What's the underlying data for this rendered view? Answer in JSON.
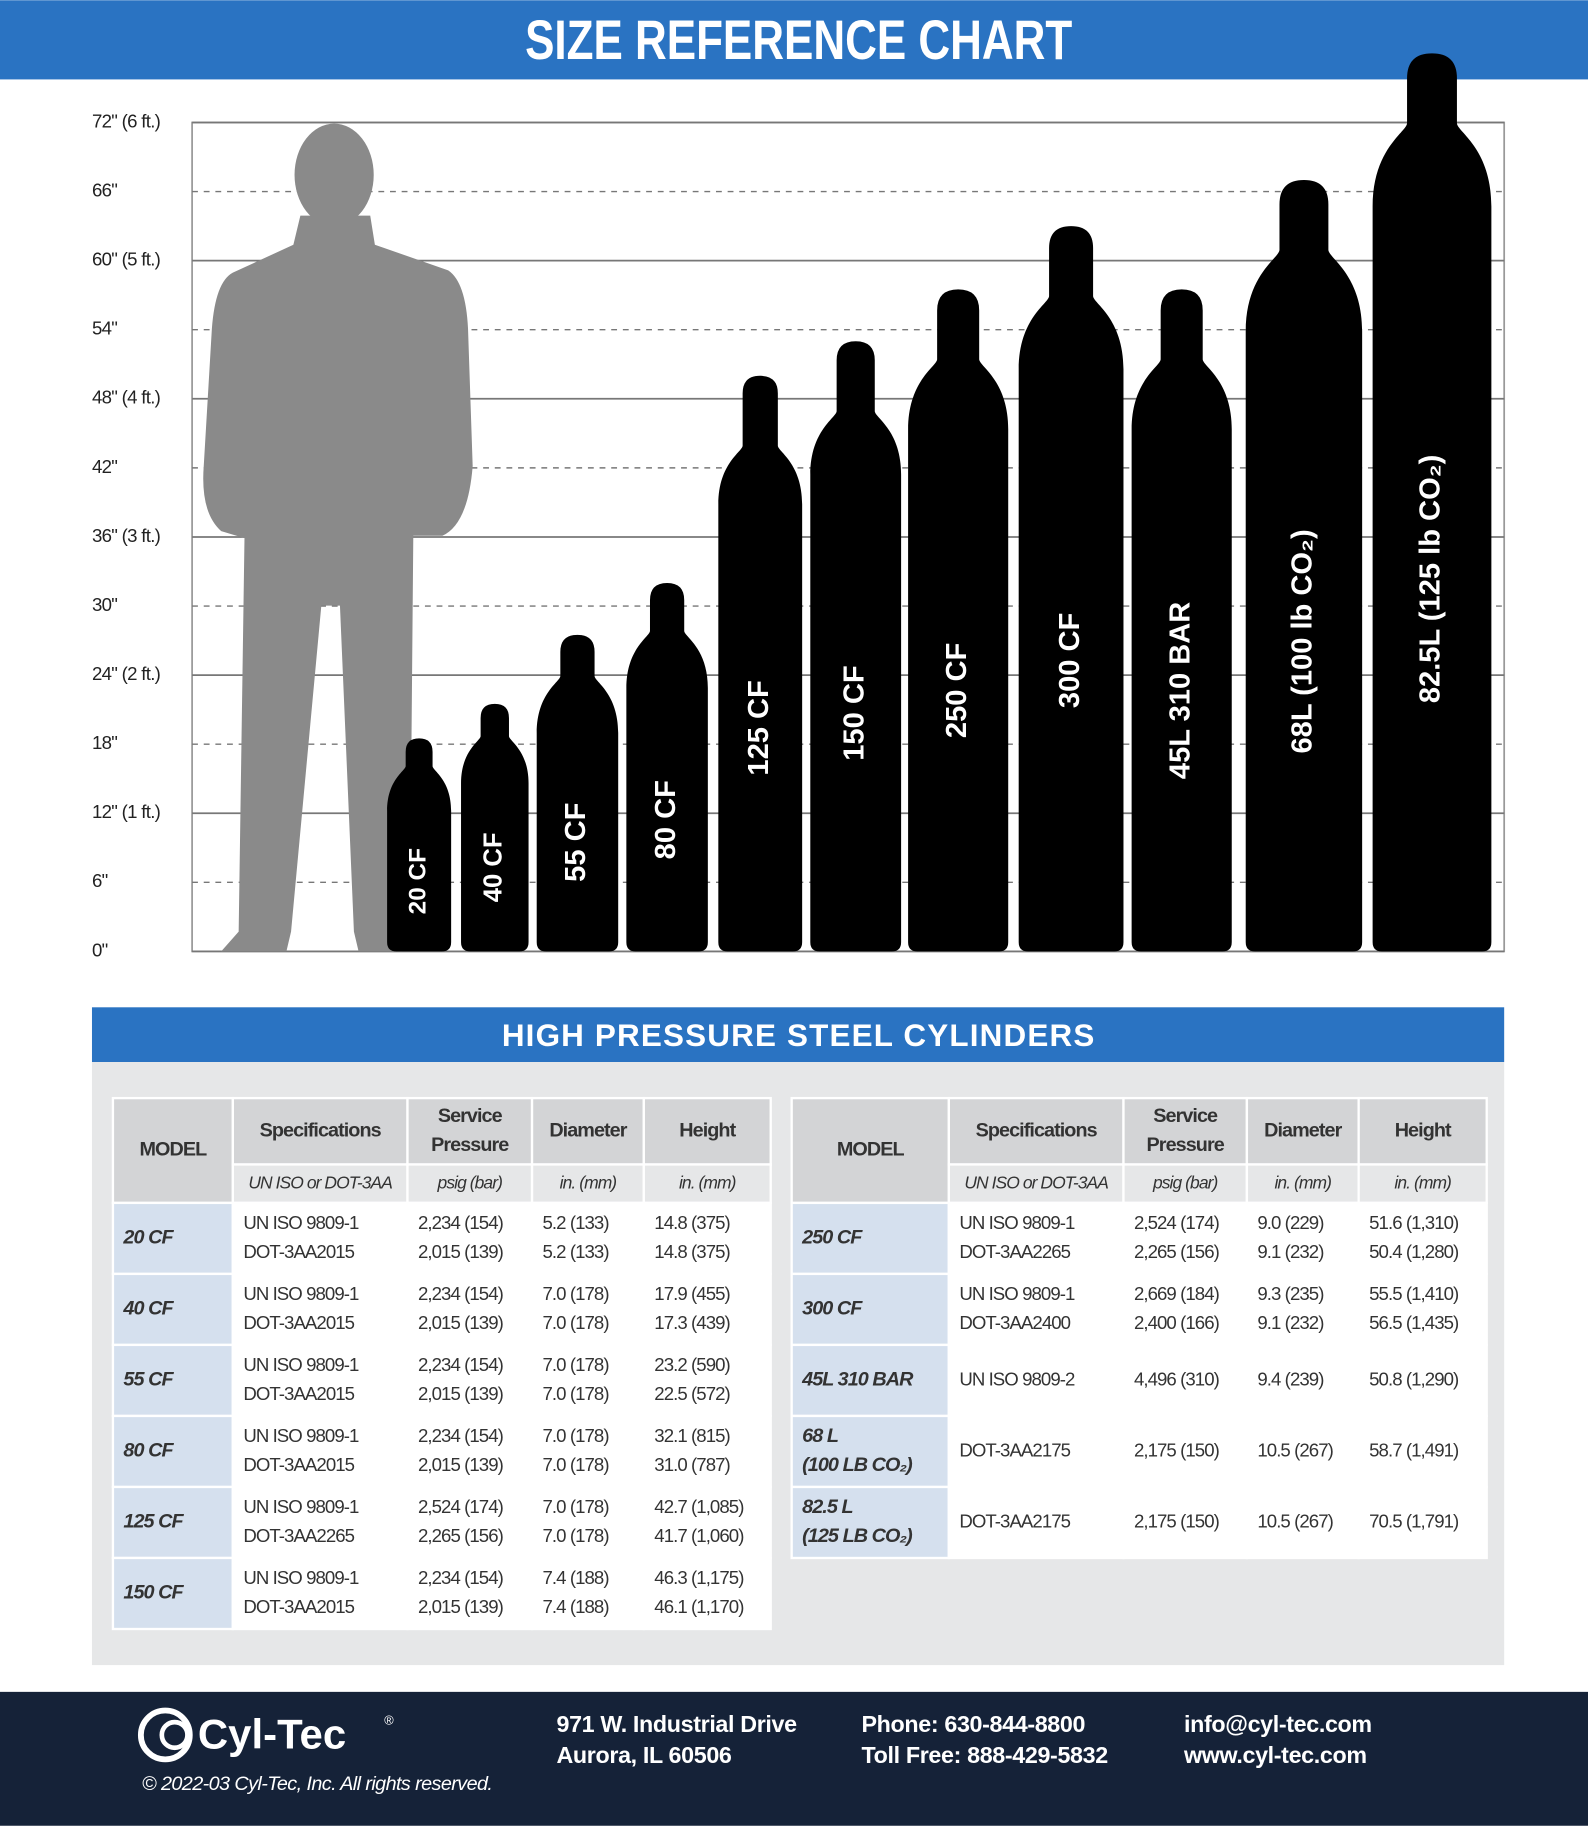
{
  "header": {
    "title": "SIZE REFERENCE CHART"
  },
  "chart_data": {
    "type": "cylinder",
    "categories": [
      "20 CF",
      "40 CF",
      "55 CF",
      "80 CF",
      "125 CF",
      "150 CF",
      "250 CF",
      "300 CF",
      "45L 310 BAR",
      "68L (100 lb CO₂)",
      "82.5L (125 lb CO₂)"
    ],
    "values": [
      18.5,
      21.5,
      27.5,
      32,
      50,
      53,
      57.5,
      63,
      57.5,
      67,
      78
    ],
    "color": "#000000",
    "ylim": [
      0,
      72
    ],
    "yticks": [
      {
        "value": 0,
        "label": "0\""
      },
      {
        "value": 6,
        "label": "6\""
      },
      {
        "value": 12,
        "label": "12\" (1 ft.)"
      },
      {
        "value": 18,
        "label": "18\""
      },
      {
        "value": 24,
        "label": "24\" (2 ft.)"
      },
      {
        "value": 30,
        "label": "30\""
      },
      {
        "value": 36,
        "label": "36\" (3 ft.)"
      },
      {
        "value": 42,
        "label": "42\""
      },
      {
        "value": 48,
        "label": "48\" (4 ft.)"
      },
      {
        "value": 54,
        "label": "54\""
      },
      {
        "value": 60,
        "label": "60\" (5 ft.)"
      },
      {
        "value": 66,
        "label": "66\""
      },
      {
        "value": 72,
        "label": "72\" (6 ft.)"
      }
    ],
    "grid": true
  },
  "table": {
    "title": "HIGH PRESSURE STEEL CYLINDERS",
    "left": {
      "headers": [
        [
          "MODEL"
        ],
        [
          "Specifications"
        ],
        [
          "Service",
          "Pressure"
        ],
        [
          "Diameter"
        ],
        [
          "Height"
        ]
      ],
      "units": [
        "UN ISO or DOT-3AA",
        "psig (bar)",
        "in. (mm)",
        "in. (mm)"
      ],
      "rows": [
        {
          "model": [
            "20 CF"
          ],
          "cells": [
            [
              "UN ISO 9809-1",
              "DOT-3AA2015"
            ],
            [
              "2,234 (154)",
              "2,015 (139)"
            ],
            [
              "5.2 (133)",
              "5.2 (133)"
            ],
            [
              "14.8 (375)",
              "14.8 (375)"
            ]
          ]
        },
        {
          "model": [
            "40 CF"
          ],
          "cells": [
            [
              "UN ISO 9809-1",
              "DOT-3AA2015"
            ],
            [
              "2,234 (154)",
              "2,015 (139)"
            ],
            [
              "7.0 (178)",
              "7.0 (178)"
            ],
            [
              "17.9 (455)",
              "17.3 (439)"
            ]
          ]
        },
        {
          "model": [
            "55 CF"
          ],
          "cells": [
            [
              "UN ISO 9809-1",
              "DOT-3AA2015"
            ],
            [
              "2,234 (154)",
              "2,015 (139)"
            ],
            [
              "7.0 (178)",
              "7.0 (178)"
            ],
            [
              "23.2 (590)",
              "22.5 (572)"
            ]
          ]
        },
        {
          "model": [
            "80 CF"
          ],
          "cells": [
            [
              "UN ISO 9809-1",
              "DOT-3AA2015"
            ],
            [
              "2,234 (154)",
              "2,015 (139)"
            ],
            [
              "7.0 (178)",
              "7.0 (178)"
            ],
            [
              "32.1 (815)",
              "31.0 (787)"
            ]
          ]
        },
        {
          "model": [
            "125 CF"
          ],
          "cells": [
            [
              "UN ISO 9809-1",
              "DOT-3AA2265"
            ],
            [
              "2,524 (174)",
              "2,265 (156)"
            ],
            [
              "7.0 (178)",
              "7.0 (178)"
            ],
            [
              "42.7 (1,085)",
              "41.7 (1,060)"
            ]
          ]
        },
        {
          "model": [
            "150 CF"
          ],
          "cells": [
            [
              "UN ISO 9809-1",
              "DOT-3AA2015"
            ],
            [
              "2,234 (154)",
              "2,015 (139)"
            ],
            [
              "7.4 (188)",
              "7.4 (188)"
            ],
            [
              "46.3 (1,175)",
              "46.1 (1,170)"
            ]
          ]
        }
      ]
    },
    "right": {
      "headers": [
        [
          "MODEL"
        ],
        [
          "Specifications"
        ],
        [
          "Service",
          "Pressure"
        ],
        [
          "Diameter"
        ],
        [
          "Height"
        ]
      ],
      "units": [
        "UN ISO or DOT-3AA",
        "psig (bar)",
        "in. (mm)",
        "in. (mm)"
      ],
      "rows": [
        {
          "model": [
            "250 CF"
          ],
          "cells": [
            [
              "UN ISO 9809-1",
              "DOT-3AA2265"
            ],
            [
              "2,524 (174)",
              "2,265 (156)"
            ],
            [
              "9.0 (229)",
              "9.1 (232)"
            ],
            [
              "51.6 (1,310)",
              "50.4 (1,280)"
            ]
          ]
        },
        {
          "model": [
            "300 CF"
          ],
          "cells": [
            [
              "UN ISO 9809-1",
              "DOT-3AA2400"
            ],
            [
              "2,669 (184)",
              "2,400 (166)"
            ],
            [
              "9.3 (235)",
              "9.1 (232)"
            ],
            [
              "55.5 (1,410)",
              "56.5 (1,435)"
            ]
          ]
        },
        {
          "model": [
            "45L 310 BAR"
          ],
          "cells": [
            [
              "UN ISO 9809-2"
            ],
            [
              "4,496 (310)"
            ],
            [
              "9.4 (239)"
            ],
            [
              "50.8 (1,290)"
            ]
          ]
        },
        {
          "model": [
            "68 L",
            "(100 LB CO₂)"
          ],
          "cells": [
            [
              "DOT-3AA2175"
            ],
            [
              "2,175 (150)"
            ],
            [
              "10.5 (267)"
            ],
            [
              "58.7 (1,491)"
            ]
          ]
        },
        {
          "model": [
            "82.5 L",
            "(125 LB CO₂)"
          ],
          "cells": [
            [
              "DOT-3AA2175"
            ],
            [
              "2,175 (150)"
            ],
            [
              "10.5 (267)"
            ],
            [
              "70.5 (1,791)"
            ]
          ]
        }
      ]
    }
  },
  "footer": {
    "logo": "Cyl-Tec",
    "registered": "®",
    "copyright": "© 2022-03  Cyl-Tec, Inc. All rights reserved.",
    "address": [
      "971 W. Industrial Drive",
      "Aurora, IL 60506"
    ],
    "phone": [
      "Phone: 630-844-8800",
      "Toll Free: 888-429-5832"
    ],
    "web": [
      "info@cyl-tec.com",
      "www.cyl-tec.com"
    ]
  }
}
